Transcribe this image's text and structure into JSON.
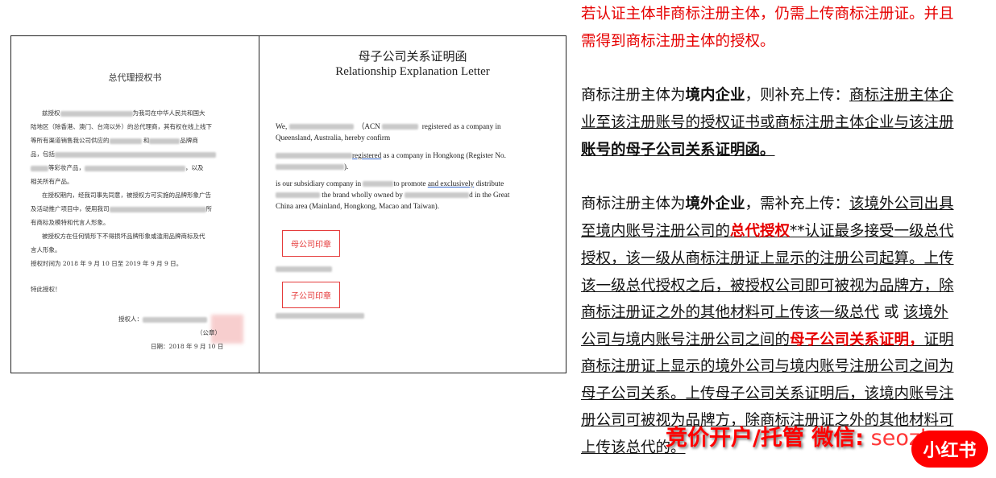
{
  "left_doc": {
    "title": "总代理授权书",
    "p1a": "兹授权",
    "p1b": "为我司在中华人民共和国大",
    "p2": "陆地区（除香港、澳门、台湾以外）的总代理商，其有权在线上线下",
    "p3a": "等所有渠道销售我公司供应的",
    "p3b": "和",
    "p3c": "品牌商",
    "p4": "品，包括",
    "p5a": "等彩妆产品，",
    "p5b": "，以及",
    "p6": "相关所有产品。",
    "p7": "在授权期内，经我司事先同意，被授权方可实施的品牌形象广告",
    "p8a": "及活动推广项目中，使用我司",
    "p8b": "所",
    "p9": "有商标及模特和代言人形象。",
    "p10": "被授权方在任何情形下不得损坏品牌形象或滥用品牌商标及代",
    "p11": "言人形象。",
    "p12": "授权时间为 2018 年 9 月 10 日至 2019 年 9 月 9 日。",
    "p13": "特此授权！",
    "signer": "授权人：",
    "seal_note": "（公章）",
    "date": "日期：2018 年 9 月 10 日"
  },
  "right_doc": {
    "title_cn": "母子公司关系证明函",
    "title_en": "Relationship Explanation Letter",
    "r1a": "We,",
    "r1b": "（ACN",
    "r1c": "registered as a company in",
    "r2": "Queensland,   Australia,   hereby confirm",
    "r3a": "registered",
    "r3b": " as  a  company  in Hongkong (Register No.",
    "r4": ").",
    "r5a": "is our subsidiary company in",
    "r5b": "to promote ",
    "r5c": "and  exclusively",
    "r5d": " distribute",
    "r6a": "the brand wholly owned by",
    "r6b": "d in the Great",
    "r7": "China area (Mainland, Hongkong, Macao and Taiwan).",
    "stamp_parent": "母公司印章",
    "stamp_child": "子公司印章",
    "return_mark": "↵"
  },
  "notes": {
    "l1": "若认证主体非商标注册主体，仍需上传商标注册证。并且",
    "l2": "需得到商标注册主体的授权。",
    "l3a": "商标注册主体为",
    "l3b": "境内企业",
    "l3c": "，则补充上传：",
    "l3d": "商标注册主体企",
    "l4": "业至该注册账号的授权证书或商标注册主体企业与该注册",
    "l5": "账号的母子公司关系证明函。",
    "l6a": "商标注册主体为",
    "l6b": "境外企业",
    "l6c": "，需补充上传：",
    "l6d": "该境外公司出具",
    "l7a": "至境内账号注册公司的",
    "l7b": "总代授权",
    "l7c": "**认证最多接受一级总代",
    "l8": "授权，该一级从商标注册证上显示的注册公司起算。上传",
    "l9": "该一级总代授权之后，被授权公司即可被视为品牌方，除",
    "l10a": "商标注册证之外的其他材料可上传该一级总代",
    "l10b": " 或 ",
    "l10c": "该境外",
    "l11a": "公司与境内账号注册公司之间的",
    "l11b": "母子公司关系证明，",
    "l11c": "证明",
    "l12": "商标注册证上显示的境外公司与境内账号注册公司之间为",
    "l13": "母子公司关系。上传母子公司关系证明后，该境内账号注",
    "l14": "册公司可被视为品牌方，除商标注册证之外的其他材料可",
    "l15": "上传该总代的。"
  },
  "watermark": {
    "text": "竞价开户/托管  微信:",
    "handle": " seozbw"
  },
  "badge": {
    "label": "小红书"
  },
  "colors": {
    "accent_red": "#e60000",
    "badge_red": "#ff0000"
  }
}
